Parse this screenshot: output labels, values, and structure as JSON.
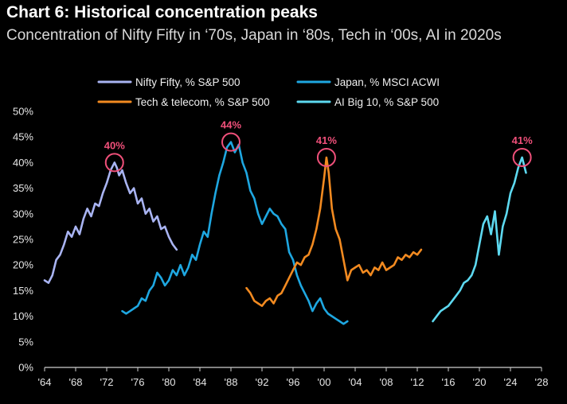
{
  "chart_data": {
    "type": "line",
    "title": "Chart 6: Historical concentration peaks",
    "subtitle": "Concentration of Nifty Fifty in ‘70s, Japan in ‘80s, Tech in ‘00s, AI in 2020s",
    "xlabel": "",
    "ylabel": "",
    "xlim": [
      1964,
      2028
    ],
    "ylim": [
      0,
      50
    ],
    "x_ticks": [
      1964,
      1968,
      1972,
      1976,
      1980,
      1984,
      1988,
      1992,
      1996,
      2000,
      2004,
      2008,
      2012,
      2016,
      2020,
      2024,
      2028
    ],
    "x_tick_labels": [
      "'64",
      "'68",
      "'72",
      "'76",
      "'80",
      "'84",
      "'88",
      "'92",
      "'96",
      "'00",
      "'04",
      "'08",
      "'12",
      "'16",
      "'20",
      "'24",
      "'28"
    ],
    "y_ticks": [
      0,
      5,
      10,
      15,
      20,
      25,
      30,
      35,
      40,
      45,
      50
    ],
    "y_tick_labels": [
      "0%",
      "5%",
      "10%",
      "15%",
      "20%",
      "25%",
      "30%",
      "35%",
      "40%",
      "45%",
      "50%"
    ],
    "grid": false,
    "legend_position": "top",
    "series": [
      {
        "name": "Nifty Fifty, % S&P 500",
        "color": "#a9b4f2",
        "x": [
          1964,
          1964.5,
          1965,
          1965.5,
          1966,
          1966.5,
          1967,
          1967.5,
          1968,
          1968.5,
          1969,
          1969.5,
          1970,
          1970.5,
          1971,
          1971.5,
          1972,
          1972.5,
          1973,
          1973.3,
          1973.6,
          1974,
          1974.5,
          1975,
          1975.5,
          1976,
          1976.5,
          1977,
          1977.5,
          1978,
          1978.5,
          1979,
          1979.5,
          1980,
          1980.5,
          1981
        ],
        "y": [
          17,
          16.5,
          18,
          21,
          22,
          24,
          26.5,
          25.5,
          27.5,
          26,
          29,
          31,
          29.5,
          32,
          31.5,
          34,
          36,
          38.5,
          40,
          39,
          37.5,
          38.5,
          36,
          34,
          35,
          32,
          33,
          30,
          31,
          28.5,
          29.5,
          27,
          27.5,
          25.5,
          24,
          23
        ]
      },
      {
        "name": "Japan, % MSCI ACWI",
        "color": "#1ea7e1",
        "x": [
          1974,
          1974.5,
          1975,
          1975.5,
          1976,
          1976.5,
          1977,
          1977.5,
          1978,
          1978.5,
          1979,
          1979.5,
          1980,
          1980.5,
          1981,
          1981.5,
          1982,
          1982.5,
          1983,
          1983.5,
          1984,
          1984.5,
          1985,
          1985.5,
          1986,
          1986.5,
          1987,
          1987.5,
          1988,
          1988.5,
          1989,
          1989.5,
          1990,
          1990.5,
          1991,
          1991.5,
          1992,
          1992.5,
          1993,
          1993.5,
          1994,
          1994.5,
          1995,
          1995.5,
          1996,
          1996.5,
          1997,
          1997.5,
          1998,
          1998.5,
          1999,
          1999.5,
          2000,
          2000.5,
          2001,
          2001.5,
          2002,
          2002.5,
          2003
        ],
        "y": [
          11,
          10.5,
          11,
          11.5,
          12,
          13.5,
          13,
          15,
          16,
          18.5,
          17.5,
          16,
          17,
          19,
          18,
          20,
          18,
          19.5,
          22,
          21,
          24,
          26.5,
          25.5,
          30,
          34,
          37.5,
          40,
          43,
          44,
          42,
          43.5,
          40,
          38,
          34.5,
          33,
          30,
          28,
          29.5,
          31,
          30,
          29.5,
          28,
          27,
          22.5,
          21,
          18,
          16,
          14.5,
          13,
          11,
          12.5,
          13.5,
          11.5,
          10.5,
          10,
          9.5,
          9,
          8.5,
          9
        ]
      },
      {
        "name": "Tech & telecom, % S&P 500",
        "color": "#f28a20",
        "x": [
          1990,
          1990.5,
          1991,
          1991.5,
          1992,
          1992.5,
          1993,
          1993.5,
          1994,
          1994.5,
          1995,
          1995.5,
          1996,
          1996.5,
          1997,
          1997.5,
          1998,
          1998.5,
          1999,
          1999.5,
          2000,
          2000.3,
          2000.6,
          2001,
          2001.5,
          2002,
          2002.5,
          2003,
          2003.5,
          2004,
          2004.5,
          2005,
          2005.5,
          2006,
          2006.5,
          2007,
          2007.5,
          2008,
          2008.5,
          2009,
          2009.5,
          2010,
          2010.5,
          2011,
          2011.5,
          2012,
          2012.5
        ],
        "y": [
          15.5,
          14.5,
          13,
          12.5,
          12,
          13,
          13.5,
          12.5,
          14,
          14.5,
          16,
          17.5,
          19,
          20.5,
          20,
          21.5,
          22,
          24,
          27,
          31,
          37,
          41,
          38,
          31,
          27,
          25,
          21,
          17,
          19,
          19.5,
          20,
          18.5,
          19,
          18,
          19.5,
          19,
          20.5,
          19,
          19.5,
          20,
          21.5,
          21,
          22,
          21.5,
          22.5,
          22,
          23
        ]
      },
      {
        "name": "AI Big 10, % S&P 500",
        "color": "#5dd9f0",
        "x": [
          2014,
          2014.5,
          2015,
          2015.5,
          2016,
          2016.5,
          2017,
          2017.5,
          2018,
          2018.5,
          2019,
          2019.5,
          2020,
          2020.5,
          2021,
          2021.5,
          2022,
          2022.5,
          2023,
          2023.5,
          2024,
          2024.5,
          2025,
          2025.5,
          2026
        ],
        "y": [
          9,
          10,
          11,
          11.5,
          12,
          13,
          14,
          15,
          16.5,
          17,
          18,
          20,
          24,
          28,
          29.5,
          26,
          30.5,
          22,
          27.5,
          30,
          34,
          36,
          39,
          41,
          38
        ]
      }
    ],
    "peaks": [
      {
        "label": "40%",
        "x": 1973,
        "y": 40,
        "series": "Nifty Fifty, % S&P 500"
      },
      {
        "label": "44%",
        "x": 1988,
        "y": 44,
        "series": "Japan, % MSCI ACWI"
      },
      {
        "label": "41%",
        "x": 2000.3,
        "y": 41,
        "series": "Tech & telecom, % S&P 500"
      },
      {
        "label": "41%",
        "x": 2025.5,
        "y": 41,
        "series": "AI Big 10, % S&P 500"
      }
    ],
    "peak_marker_color": "#f0507a",
    "axis_color": "#cfcfcf"
  }
}
